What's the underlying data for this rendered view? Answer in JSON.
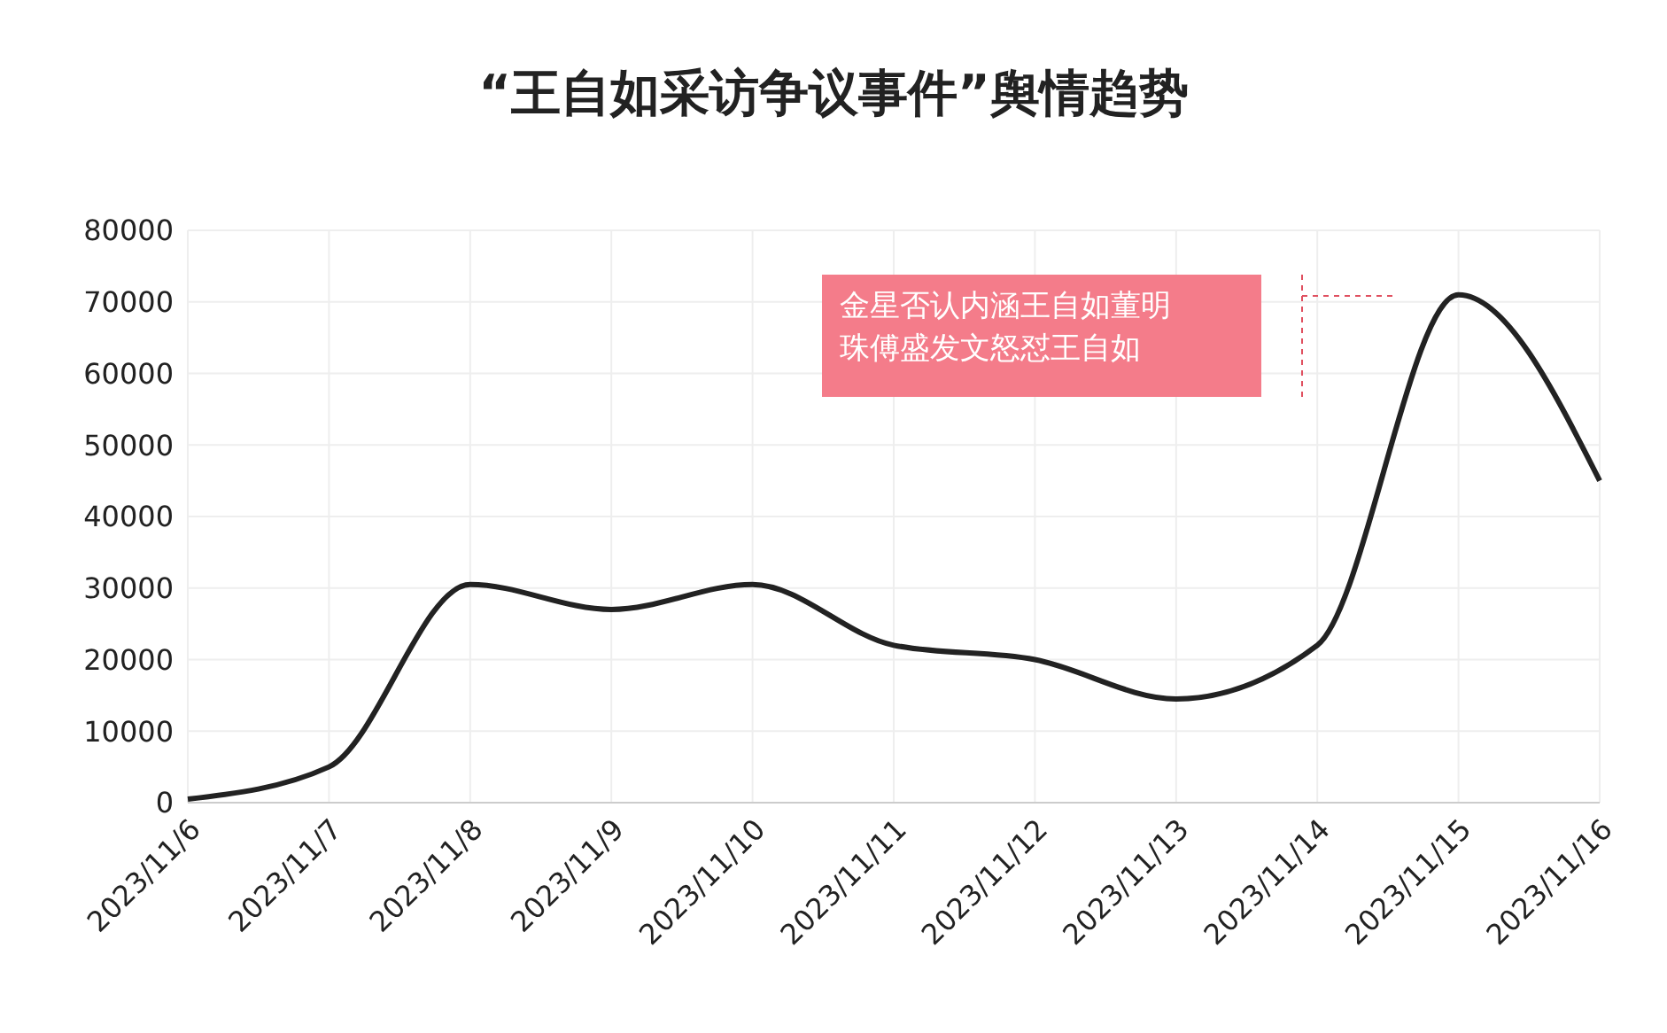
{
  "chart_data": {
    "type": "line",
    "title": "“王自如采访争议事件”舆情趋势",
    "categories": [
      "2023/11/6",
      "2023/11/7",
      "2023/11/8",
      "2023/11/9",
      "2023/11/10",
      "2023/11/11",
      "2023/11/12",
      "2023/11/13",
      "2023/11/14",
      "2023/11/15",
      "2023/11/16"
    ],
    "series": [
      {
        "color": "#222222",
        "values": [
          500,
          5000,
          30500,
          27000,
          30500,
          22000,
          20000,
          14500,
          22000,
          71000,
          45000
        ]
      }
    ],
    "ylim": [
      0,
      80000
    ],
    "yticks": [
      0,
      10000,
      20000,
      30000,
      40000,
      50000,
      60000,
      70000,
      80000
    ],
    "grid": true,
    "marker": "none",
    "legend": false,
    "annotations": [
      "金星否认内涵王自如董明珠傅盛发文怒怼王自如"
    ]
  }
}
